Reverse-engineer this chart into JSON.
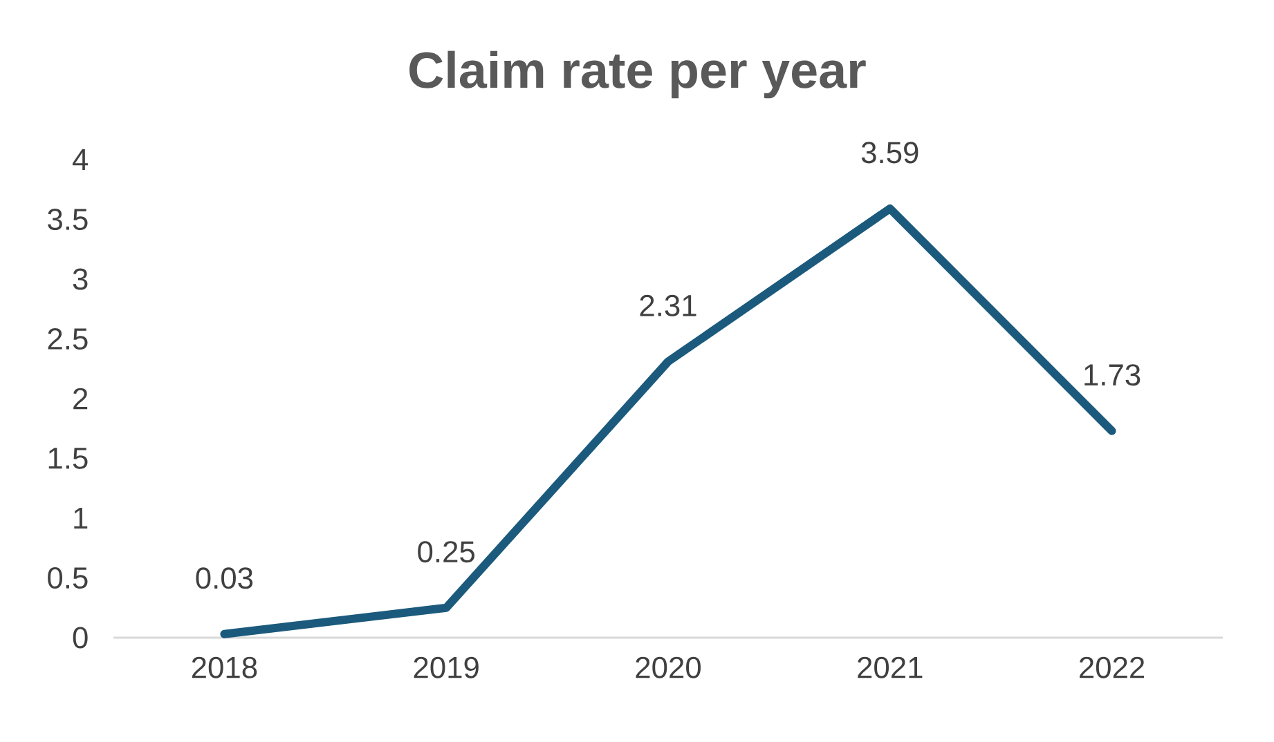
{
  "chart_data": {
    "type": "line",
    "title": "Claim rate per year",
    "categories": [
      "2018",
      "2019",
      "2020",
      "2021",
      "2022"
    ],
    "values": [
      0.03,
      0.25,
      2.31,
      3.59,
      1.73
    ],
    "color": "#1b5a7c",
    "ylim": [
      0,
      4
    ],
    "yticks": [
      0,
      0.5,
      1,
      1.5,
      2,
      2.5,
      3,
      3.5,
      4
    ],
    "data_labels": true,
    "marker": "none",
    "line_style": "solid"
  }
}
